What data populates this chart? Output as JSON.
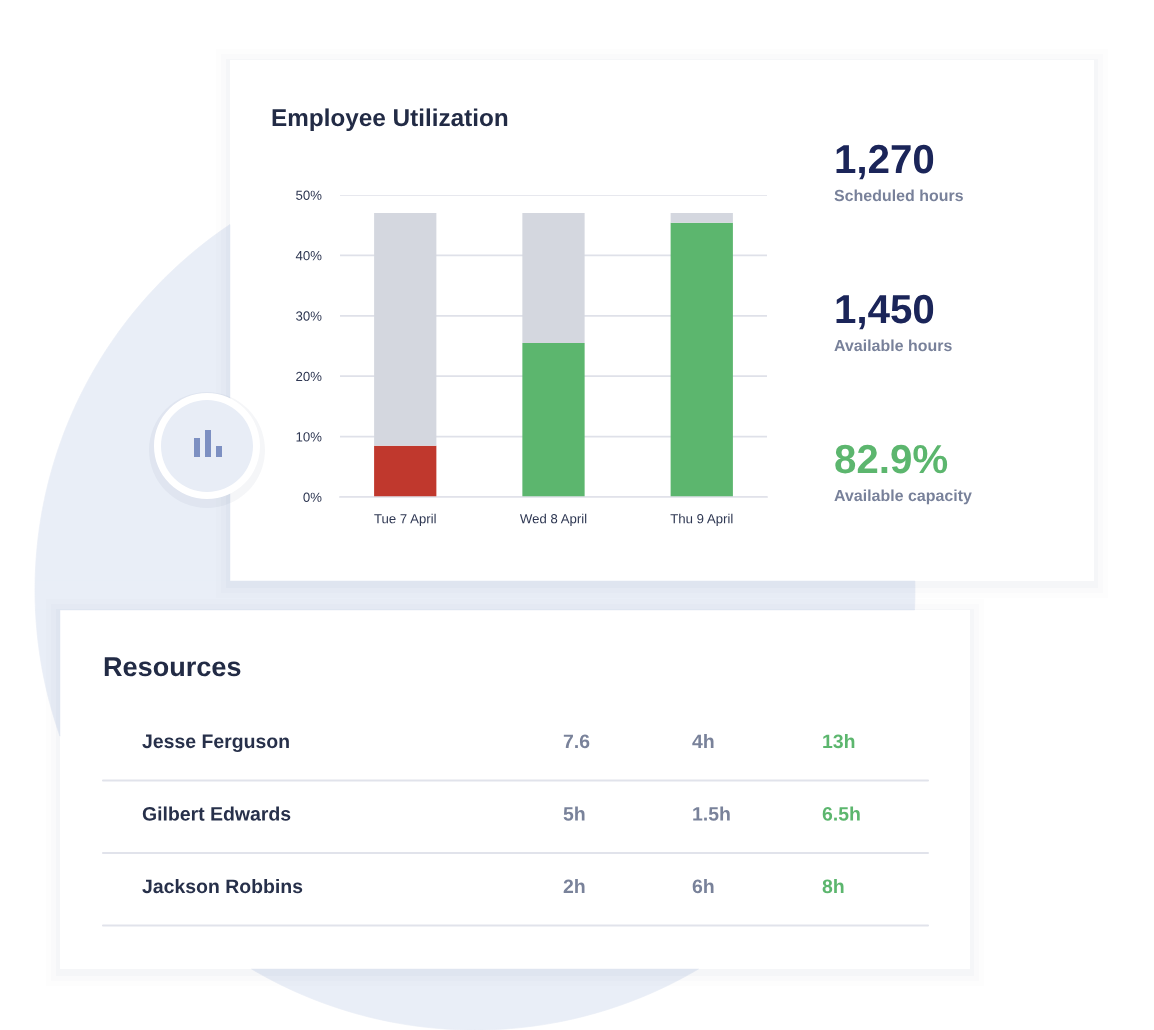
{
  "chart_data": [
    {
      "type": "bar",
      "title": "Employee Utilization",
      "categories": [
        "Tue 7 April",
        "Wed 8 April",
        "Thu 9 April"
      ],
      "stacked": true,
      "series": [
        {
          "colors": [
            "#c0382d",
            "#5cb66e",
            "#5cb66e"
          ],
          "values": [
            8.5,
            25.5,
            45.4
          ]
        },
        {
          "color": "#d4d7df",
          "values": [
            38.5,
            21.5,
            1.6
          ]
        }
      ],
      "ylim": [
        0,
        50
      ],
      "yticks": [
        {
          "value": 0,
          "label": "0%"
        },
        {
          "value": 10,
          "label": "10%"
        },
        {
          "value": 20,
          "label": "20%"
        },
        {
          "value": 30,
          "label": "30%"
        },
        {
          "value": 40,
          "label": "40%"
        },
        {
          "value": 50,
          "label": "50%"
        }
      ],
      "grid": "y"
    },
    {
      "type": "other",
      "categories": [
        "Scheduled hours",
        "Available hours",
        "Available capacity"
      ],
      "value_labels": [
        "1,270",
        "1,450",
        "82.9%"
      ],
      "colors": [
        "#1b2559",
        "#1b2559",
        "#5cb66e"
      ]
    },
    {
      "type": "other",
      "title": "Resources",
      "categories": [
        "Jesse Ferguson",
        "Gilbert Edwards",
        "Jackson Robbins"
      ],
      "series": [
        {
          "color": "#79829a",
          "values": [
            7.6,
            5,
            2
          ],
          "value_labels": [
            "7.6",
            "5h",
            "2h"
          ]
        },
        {
          "color": "#79829a",
          "values": [
            4,
            1.5,
            6
          ],
          "value_labels": [
            "4h",
            "1.5h",
            "6h"
          ]
        },
        {
          "color": "#5cb66e",
          "values": [
            13,
            6.5,
            8
          ],
          "value_labels": [
            "13h",
            "6.5h",
            "8h"
          ]
        }
      ]
    }
  ]
}
